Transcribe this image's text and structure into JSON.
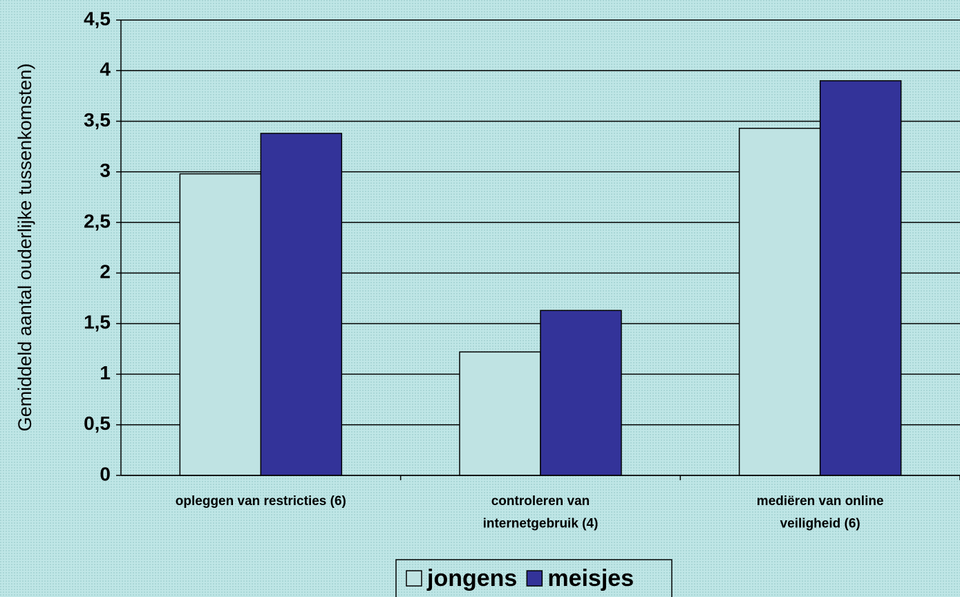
{
  "chart_data": {
    "type": "bar",
    "y_label": "Gemiddeld aantal ouderlijke tussenkomsten)",
    "categories": [
      "opleggen van restricties (6)",
      "controleren van\ninternetgebruik (4)",
      "mediëren van online\nveiligheid (6)"
    ],
    "series": [
      {
        "name": "jongens",
        "color": "#bfe3e3",
        "values": [
          2.98,
          1.22,
          3.43
        ]
      },
      {
        "name": "meisjes",
        "color": "#333399",
        "values": [
          3.38,
          1.63,
          3.9
        ]
      }
    ],
    "ylim": [
      0,
      4.5
    ],
    "yticks": [
      0,
      {
        "value": 0.5,
        "label": "0,5"
      },
      1,
      {
        "value": 1.5,
        "label": "1,5"
      },
      2,
      {
        "value": 2.5,
        "label": "2,5"
      },
      3,
      {
        "value": 3.5,
        "label": "3,5"
      },
      4,
      {
        "value": 4.5,
        "label": "4,5"
      }
    ],
    "grid": true,
    "legend": "bottom"
  }
}
